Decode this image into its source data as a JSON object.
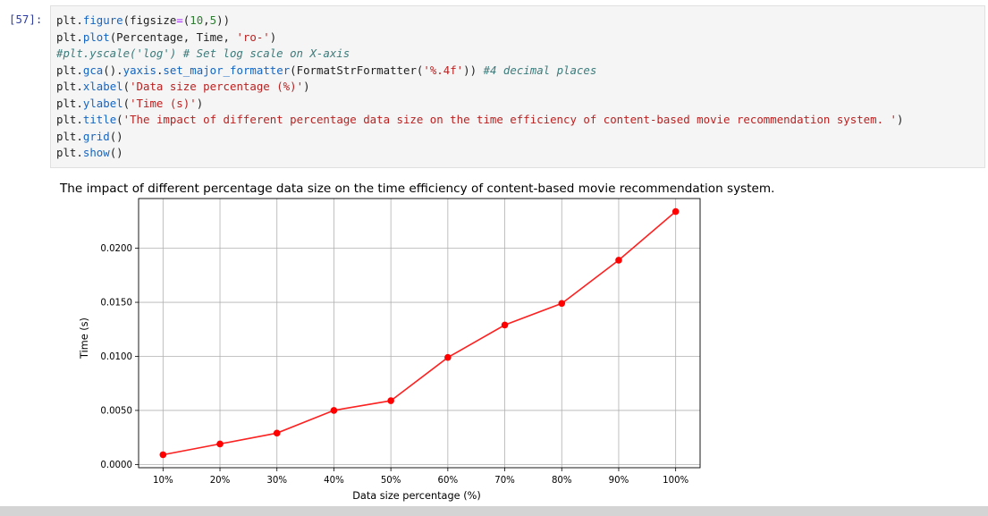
{
  "cell": {
    "prompt": "[57]:",
    "lines": [
      [
        {
          "t": "plt",
          "c": "name"
        },
        {
          "t": ".",
          "c": "punc"
        },
        {
          "t": "figure",
          "c": "attr"
        },
        {
          "t": "(figsize",
          "c": "punc"
        },
        {
          "t": "=",
          "c": "op"
        },
        {
          "t": "(",
          "c": "punc"
        },
        {
          "t": "10",
          "c": "num"
        },
        {
          "t": ",",
          "c": "punc"
        },
        {
          "t": "5",
          "c": "num"
        },
        {
          "t": "))",
          "c": "punc"
        }
      ],
      [
        {
          "t": "plt",
          "c": "name"
        },
        {
          "t": ".",
          "c": "punc"
        },
        {
          "t": "plot",
          "c": "attr"
        },
        {
          "t": "(Percentage, Time, ",
          "c": "punc"
        },
        {
          "t": "'ro-'",
          "c": "str"
        },
        {
          "t": ")",
          "c": "punc"
        }
      ],
      [
        {
          "t": "#plt.yscale('log') # Set log scale on X-axis",
          "c": "com"
        }
      ],
      [
        {
          "t": "plt",
          "c": "name"
        },
        {
          "t": ".",
          "c": "punc"
        },
        {
          "t": "gca",
          "c": "attr"
        },
        {
          "t": "()",
          "c": "punc"
        },
        {
          "t": ".",
          "c": "punc"
        },
        {
          "t": "yaxis",
          "c": "attr"
        },
        {
          "t": ".",
          "c": "punc"
        },
        {
          "t": "set_major_formatter",
          "c": "attr"
        },
        {
          "t": "(FormatStrFormatter(",
          "c": "punc"
        },
        {
          "t": "'%.4f'",
          "c": "str"
        },
        {
          "t": ")) ",
          "c": "punc"
        },
        {
          "t": "#4 decimal places",
          "c": "com"
        }
      ],
      [
        {
          "t": "plt",
          "c": "name"
        },
        {
          "t": ".",
          "c": "punc"
        },
        {
          "t": "xlabel",
          "c": "attr"
        },
        {
          "t": "(",
          "c": "punc"
        },
        {
          "t": "'Data size percentage (%)'",
          "c": "str"
        },
        {
          "t": ")",
          "c": "punc"
        }
      ],
      [
        {
          "t": "plt",
          "c": "name"
        },
        {
          "t": ".",
          "c": "punc"
        },
        {
          "t": "ylabel",
          "c": "attr"
        },
        {
          "t": "(",
          "c": "punc"
        },
        {
          "t": "'Time (s)'",
          "c": "str"
        },
        {
          "t": ")",
          "c": "punc"
        }
      ],
      [
        {
          "t": "plt",
          "c": "name"
        },
        {
          "t": ".",
          "c": "punc"
        },
        {
          "t": "title",
          "c": "attr"
        },
        {
          "t": "(",
          "c": "punc"
        },
        {
          "t": "'The impact of different percentage data size on the time efficiency of content-based movie recommendation system. '",
          "c": "str"
        },
        {
          "t": ")",
          "c": "punc"
        }
      ],
      [
        {
          "t": "plt",
          "c": "name"
        },
        {
          "t": ".",
          "c": "punc"
        },
        {
          "t": "grid",
          "c": "attr"
        },
        {
          "t": "()",
          "c": "punc"
        }
      ],
      [
        {
          "t": "plt",
          "c": "name"
        },
        {
          "t": ".",
          "c": "punc"
        },
        {
          "t": "show",
          "c": "attr"
        },
        {
          "t": "()",
          "c": "punc"
        }
      ]
    ]
  },
  "colors": {
    "line": "#ff2020",
    "marker": "#ff0000",
    "grid": "#b0b0b0",
    "axis": "#000000"
  },
  "chart_data": {
    "type": "line",
    "title": "The impact of different percentage data size on the time efficiency of content-based movie recommendation system.",
    "xlabel": "Data size percentage (%)",
    "ylabel": "Time (s)",
    "categories": [
      "10%",
      "20%",
      "30%",
      "40%",
      "50%",
      "60%",
      "70%",
      "80%",
      "90%",
      "100%"
    ],
    "values": [
      0.0009,
      0.0019,
      0.0029,
      0.005,
      0.0059,
      0.0099,
      0.0129,
      0.0149,
      0.0189,
      0.0234
    ],
    "yticks": [
      0.0,
      0.005,
      0.01,
      0.015,
      0.02
    ],
    "ytick_labels": [
      "0.0000",
      "0.0050",
      "0.0100",
      "0.0150",
      "0.0200"
    ],
    "ylim": [
      -0.0003,
      0.0246
    ],
    "grid": true,
    "style": "ro-"
  }
}
